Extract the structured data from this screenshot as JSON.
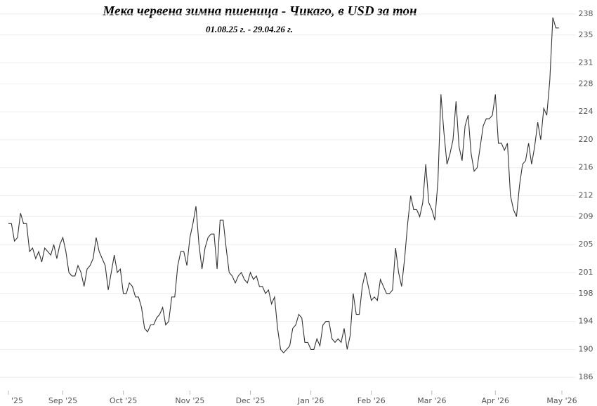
{
  "chart_data": {
    "type": "line",
    "title": "Мека червена зимна пшеница - Чикаго, в  USD  за тон",
    "subtitle": "01.08.25 г. - 29.04.26 г.",
    "color": "#333333",
    "grid": true,
    "ylim": [
      183.2,
      239.5
    ],
    "yticks": [
      186,
      190,
      194,
      198,
      201,
      205,
      209,
      212,
      216,
      220,
      224,
      228,
      231,
      235,
      238
    ],
    "categories": [
      "'25",
      null,
      null,
      null,
      null,
      null,
      null,
      null,
      null,
      null,
      null,
      null,
      null,
      null,
      null,
      null,
      null,
      null,
      "Sep '25",
      null,
      null,
      null,
      null,
      null,
      null,
      null,
      null,
      null,
      null,
      null,
      null,
      null,
      null,
      null,
      null,
      null,
      null,
      null,
      "Oct '25",
      null,
      null,
      null,
      null,
      null,
      null,
      null,
      null,
      null,
      null,
      null,
      null,
      null,
      null,
      null,
      null,
      null,
      null,
      null,
      null,
      null,
      "Nov '25",
      null,
      null,
      null,
      null,
      null,
      null,
      null,
      null,
      null,
      null,
      null,
      null,
      null,
      null,
      null,
      null,
      null,
      null,
      null,
      "Dec '25",
      null,
      null,
      null,
      null,
      null,
      null,
      null,
      null,
      null,
      null,
      null,
      null,
      null,
      null,
      null,
      null,
      null,
      null,
      null,
      "Jan '26",
      null,
      null,
      null,
      null,
      null,
      null,
      null,
      null,
      null,
      null,
      null,
      null,
      null,
      null,
      null,
      null,
      null,
      null,
      null,
      "Feb '26",
      null,
      null,
      null,
      null,
      null,
      null,
      null,
      null,
      null,
      null,
      null,
      null,
      null,
      null,
      null,
      null,
      null,
      null,
      null,
      "Mar '26",
      null,
      null,
      null,
      null,
      null,
      null,
      null,
      null,
      null,
      null,
      null,
      null,
      null,
      null,
      null,
      null,
      null,
      null,
      null,
      null,
      "Apr '26",
      null,
      null,
      null,
      null,
      null,
      null,
      null,
      null,
      null,
      null,
      null,
      null,
      null,
      null,
      null,
      null,
      null,
      null,
      null,
      null,
      null,
      "May '26"
    ],
    "values": [
      208,
      208,
      205.5,
      206,
      209.5,
      208,
      208,
      204,
      204.5,
      203,
      204,
      202.5,
      204.5,
      204,
      203.5,
      205,
      203,
      205,
      206,
      204,
      201,
      200.5,
      200.5,
      202,
      201,
      199,
      201.5,
      202,
      203,
      206,
      204,
      203,
      202,
      198.5,
      201,
      203.5,
      201,
      201.5,
      198,
      198,
      199.5,
      199,
      197.5,
      197.5,
      196,
      193,
      192.5,
      193.5,
      193.5,
      194.5,
      195,
      196,
      193.5,
      194,
      197.5,
      197.5,
      202,
      204,
      204,
      202,
      206,
      208,
      210.5,
      205,
      201.5,
      204.5,
      206,
      206.5,
      206.5,
      201.5,
      208.5,
      208.5,
      204.5,
      201,
      200.5,
      199.5,
      200.5,
      201,
      200,
      199.5,
      201,
      200,
      200.5,
      199,
      199,
      198,
      198.5,
      196.5,
      197.5,
      193,
      190,
      189.5,
      190,
      190.5,
      193,
      193.5,
      195,
      194.5,
      191,
      191,
      190,
      190,
      191.5,
      190.5,
      193.5,
      194,
      194,
      191.5,
      191,
      191.5,
      191,
      193,
      190,
      192,
      198,
      195,
      195,
      199,
      201,
      199,
      197,
      197.5,
      197,
      200,
      199,
      198,
      198,
      198.5,
      204.5,
      201,
      199,
      203,
      208,
      212,
      210,
      210,
      209,
      211,
      216.5,
      211,
      210,
      208.5,
      214,
      226.5,
      221,
      216.5,
      218,
      220,
      225.5,
      219,
      217,
      222,
      223.5,
      218,
      215.5,
      216,
      219,
      222,
      223,
      223,
      223.5,
      226.5,
      219.5,
      219.5,
      218.5,
      219.5,
      212,
      210,
      209,
      213.5,
      216.5,
      217,
      219.5,
      216.5,
      219,
      222.5,
      220,
      224.5,
      223.5,
      228.5,
      237.5,
      236,
      236,
      null
    ]
  }
}
